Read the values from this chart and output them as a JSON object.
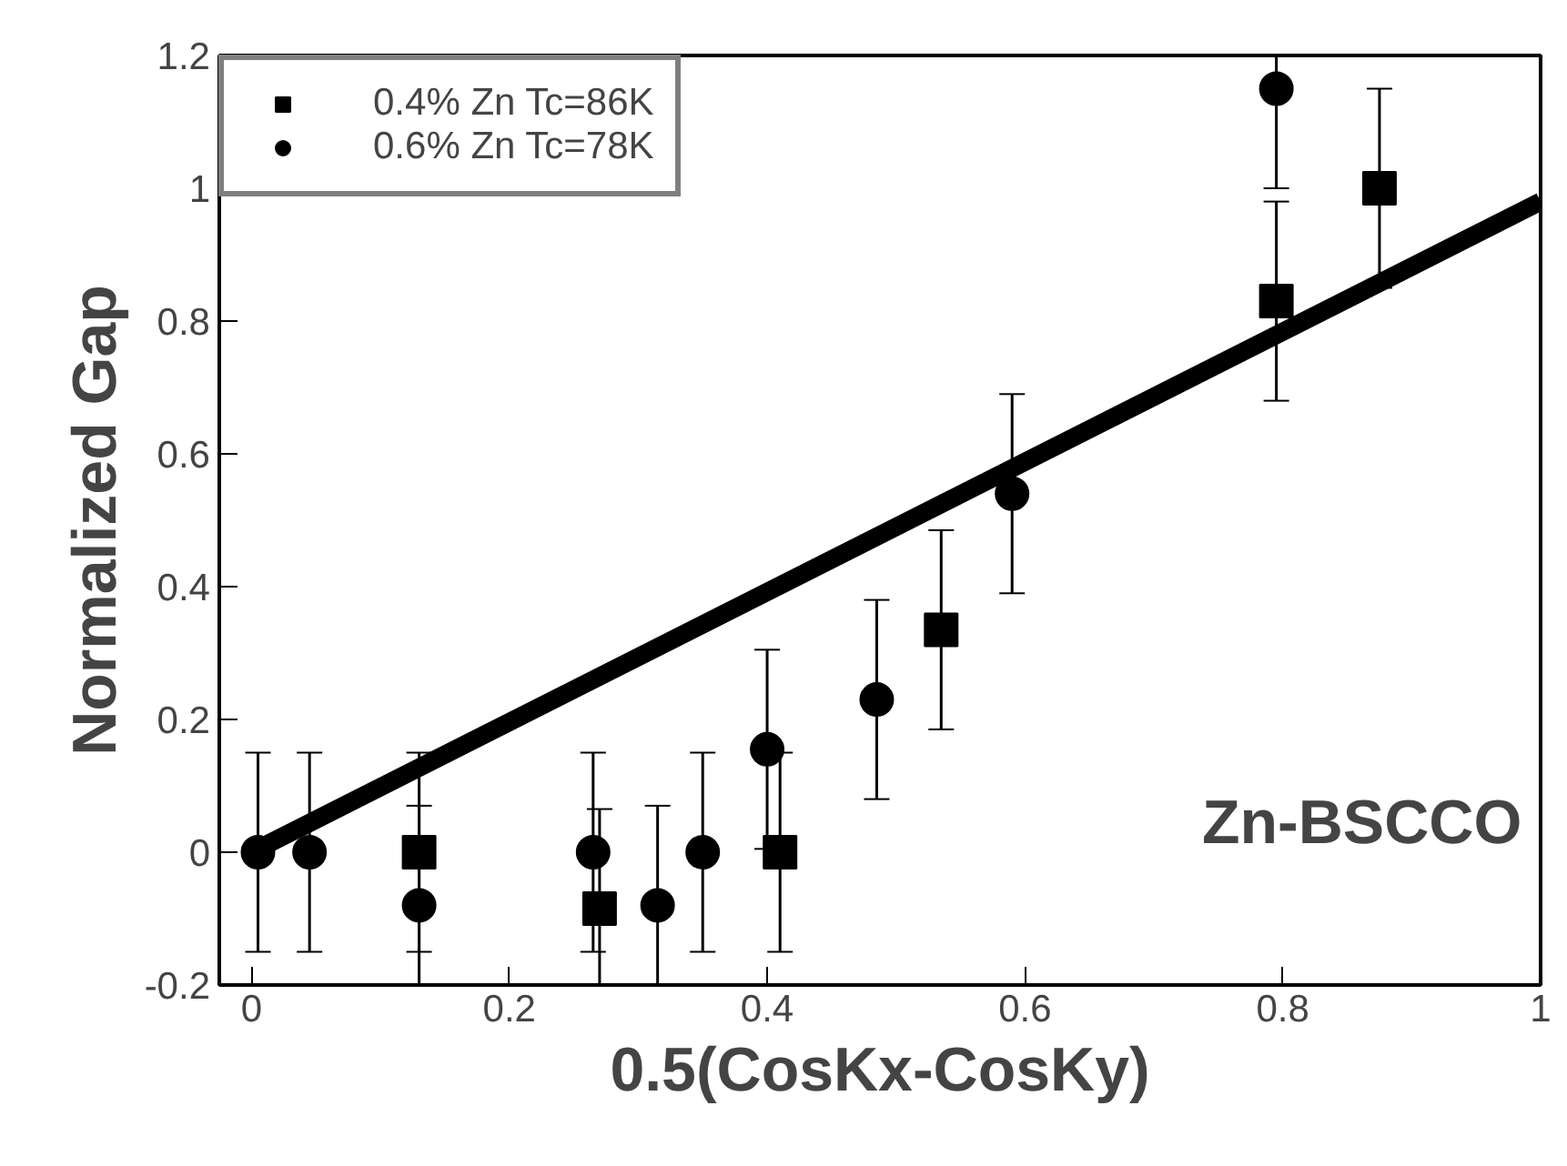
{
  "chart_data": {
    "type": "scatter",
    "xlabel": "0.5(CosKx-CosKy)",
    "ylabel": "Normalized Gap",
    "xlim": [
      -0.025,
      1.0
    ],
    "ylim": [
      -0.2,
      1.2
    ],
    "xticks": [
      0,
      0.2,
      0.4,
      0.6,
      0.8,
      1
    ],
    "yticks": [
      -0.2,
      0,
      0.2,
      0.4,
      0.6,
      0.8,
      1,
      1.2
    ],
    "series": [
      {
        "name": "0.4% Zn Tc=86K",
        "color": "#000000",
        "marker": "square",
        "x": [
          0.13,
          0.27,
          0.41,
          0.535,
          0.795,
          0.875
        ],
        "values": [
          0.0,
          -0.085,
          0.0,
          0.335,
          0.83,
          1.0
        ],
        "errors": [
          0.15,
          0.15,
          0.15,
          0.15,
          0.15,
          0.15
        ]
      },
      {
        "name": "0.6% Zn Tc=78K",
        "color": "#000000",
        "marker": "circle",
        "x": [
          0.005,
          0.045,
          0.13,
          0.265,
          0.315,
          0.35,
          0.4,
          0.485,
          0.59,
          0.795
        ],
        "values": [
          0.0,
          0.0,
          -0.08,
          0.0,
          -0.08,
          0.0,
          0.155,
          0.23,
          0.54,
          1.15
        ],
        "errors": [
          0.15,
          0.15,
          0.15,
          0.15,
          0.15,
          0.15,
          0.15,
          0.15,
          0.15,
          0.15
        ]
      },
      {
        "type": "line",
        "color": "#000000",
        "marker": "none",
        "x": [
          0,
          1
        ],
        "values": [
          0,
          0.98
        ]
      }
    ],
    "annotations": [
      "Zn-BSCCO"
    ],
    "legend": "top left",
    "grid": false
  }
}
